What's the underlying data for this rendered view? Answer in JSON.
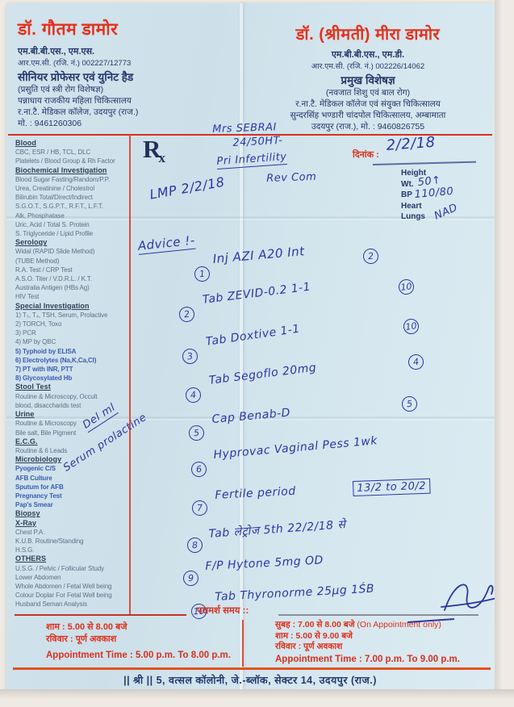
{
  "colors": {
    "accent_red": "#d93220",
    "ink_blue": "#2b36a6",
    "navy_text": "#24386b",
    "paper_blue": "#cfe1ea",
    "orange_line": "#e2531f"
  },
  "header": {
    "left": {
      "name": "डॉ. गौतम डामोर",
      "degree": "एम.बी.बी.एस., एम.एस.",
      "reg": "आर.एम.सी. (रजि. नं.) 002227/12773",
      "title": "सीनियर प्रोफेसर एवं युनिट हैड",
      "speciality": "(प्रसुति एवं स्त्री रोग विशेषज्ञ)",
      "line1": "पन्नाधाय राजकीय महिला चिकित्सालय",
      "line2": "र.ना.टै. मेडिकल कॉलेज, उदयपुर (राज.)",
      "mobile": "मो. : 9461260306"
    },
    "right": {
      "name": "डॉ. (श्रीमती) मीरा डामोर",
      "degree": "एम.बी.बी.एस., एम.डी.",
      "reg": "आर.एम.सी. (रजि. नं.) 002226/14062",
      "title": "प्रमुख विशेषज्ञ",
      "speciality": "(नवजात शिशु एवं बाल रोग)",
      "line1": "र.ना.टै. मेडिकल कॉलेज एवं संयुक्त चिकित्सालय",
      "line2": "सुन्दरसिंह भण्डारी चांदपोल चिकित्सालय, अम्बामाता",
      "line3": "उदयपुर (राज.), मो. : 9460826755"
    }
  },
  "rx": {
    "r": "R",
    "x": "x"
  },
  "date": {
    "label": "दिनांक :",
    "value": "2/2/18"
  },
  "vitals": {
    "labels": [
      "Height",
      "Wt.",
      "BP",
      "Heart",
      "Lungs"
    ],
    "wt_value": "50↑",
    "bp_value": "110/80",
    "note": "NAD"
  },
  "tests": {
    "sections": [
      {
        "heading": "Blood",
        "items": [
          "CBC, ESR / HB, TCL, DLC",
          "Platelets / Blood Group & Rh Factor"
        ]
      },
      {
        "heading": "Biochemical Investigation",
        "items": [
          "Blood Sugar Fasting/Random/P.P.",
          "Urea, Creatinine / Cholestrol",
          "Bilirubin Total/Direct/Indirect",
          "S.G.O.T., S.G.P.T., R.F.T., L.F.T.",
          "Alk, Phosphatase",
          "Uric, Acid / Total S. Protein",
          "S. Triglyceride / Lipid Profile"
        ]
      },
      {
        "heading": "Serology",
        "items": [
          "Widal (RAPID Slide Method)",
          "(TUBE Method)",
          "R.A. Test / CRP Test",
          "A.S.O. Titer / V.D.R.L. / K.T.",
          "Australia Antigen (HBs Ag)",
          "HIV Test"
        ]
      },
      {
        "heading": "Special Investigation",
        "items": [
          "1) T₃, T₄, TSH, Serum, Prolactive",
          "2) TORCH, Toxo",
          "3) PCR",
          "4) MP by QBC",
          {
            "t": "5) Typhoid by ELISA",
            "hl": true
          },
          {
            "t": "6) Electrolytes (Na,K,Ca,Cl)",
            "hl": true
          },
          {
            "t": "7) PT with INR, PTT",
            "hl": true
          },
          {
            "t": "8) Glycosylated Hb",
            "hl": true
          }
        ]
      },
      {
        "heading": "Stool Test",
        "items": [
          "Routine & Microscopy, Occult",
          "blood, disaccharids test"
        ]
      },
      {
        "heading": "Urine",
        "items": [
          "Routine & Microscopy",
          "Bile salt, Bile Pigment"
        ]
      },
      {
        "heading": "E.C.G.",
        "items": [
          "Routine & 6 Leads"
        ]
      },
      {
        "heading": "Microbiology",
        "items": [
          {
            "t": "Pyogenic C/S",
            "hl": true
          },
          {
            "t": "AFB Culture",
            "hl": true
          },
          {
            "t": "Sputum for AFB",
            "hl": true
          },
          {
            "t": "Pregnancy Test",
            "hl": true
          },
          {
            "t": "Pap's Smear",
            "hl": true
          }
        ]
      },
      {
        "heading": "Biopsy",
        "items": []
      },
      {
        "heading": "X-Ray",
        "items": [
          "Chest P.A.",
          "K.U.B. Routine/Standing",
          "H.S.G."
        ]
      },
      {
        "heading": "OTHERS",
        "items": [
          "U.S.G. / Pelvic / Follicular Study",
          "Lower Abdomen",
          "Whole Abdomen / Fetal Well being",
          "Colour Doplar For Fetal Well being",
          "Husband Seman Analysis"
        ]
      }
    ]
  },
  "handwriting": {
    "patient_name": "Mrs SEBRAI",
    "patient_age": "24/50HT-",
    "diagnosis": "Pri Infertility",
    "review": "Rev Com",
    "lmp": "LMP 2/2/18",
    "advice": "Advice !-",
    "diagonal1": "Del ml",
    "diagonal2": "Serum prolactine",
    "items": [
      {
        "num": "1",
        "text": "Inj  AZI A20 Int",
        "qty": "2"
      },
      {
        "num": "2",
        "text": "Tab  ZEVID-0.2  1-1",
        "qty": "10"
      },
      {
        "num": "3",
        "text": "Tab  Doxtive  1-1",
        "qty": "10"
      },
      {
        "num": "4",
        "text": "Tab  Segoflo 20mg",
        "qty": "4"
      },
      {
        "num": "5",
        "text": "Cap  Benab-D",
        "qty": "5"
      },
      {
        "num": "6",
        "text": "Hyprovac Vaginal Pess  1wk"
      },
      {
        "num": "7",
        "text": "Fertile period",
        "box": "13/2 to 20/2"
      },
      {
        "num": "8",
        "text": "Tab  लेट्रोज 5th  22/2/18 से"
      },
      {
        "num": "9",
        "text": "F/P  Hytone 5mg  OD"
      },
      {
        "num": "10",
        "text": "Tab  Thyronorme 25µg  1ŚB"
      }
    ]
  },
  "schedule_left": {
    "lines": [
      "शाम : 5.00 से 8.00 बजे",
      "रविवार : पूर्ण अवकाश"
    ],
    "appointment": "Appointment Time : 5.00 p.m. To 8.00 p.m."
  },
  "schedule_right": {
    "heading": "परामर्श समय ::",
    "lines": [
      "सुबह : 7.00 से 8.00 बजे",
      "शाम : 5.00 से 9.00 बजे",
      "रविवार : पूर्ण अवकाश"
    ],
    "note": "(On Appointment only)",
    "appointment": "Appointment Time : 7.00 p.m. To 9.00 p.m."
  },
  "footer": "|| श्री || 5, वत्सल कॉलोनी, जे.-ब्लॉक, सेक्टर 14, उदयपुर (राज.)"
}
